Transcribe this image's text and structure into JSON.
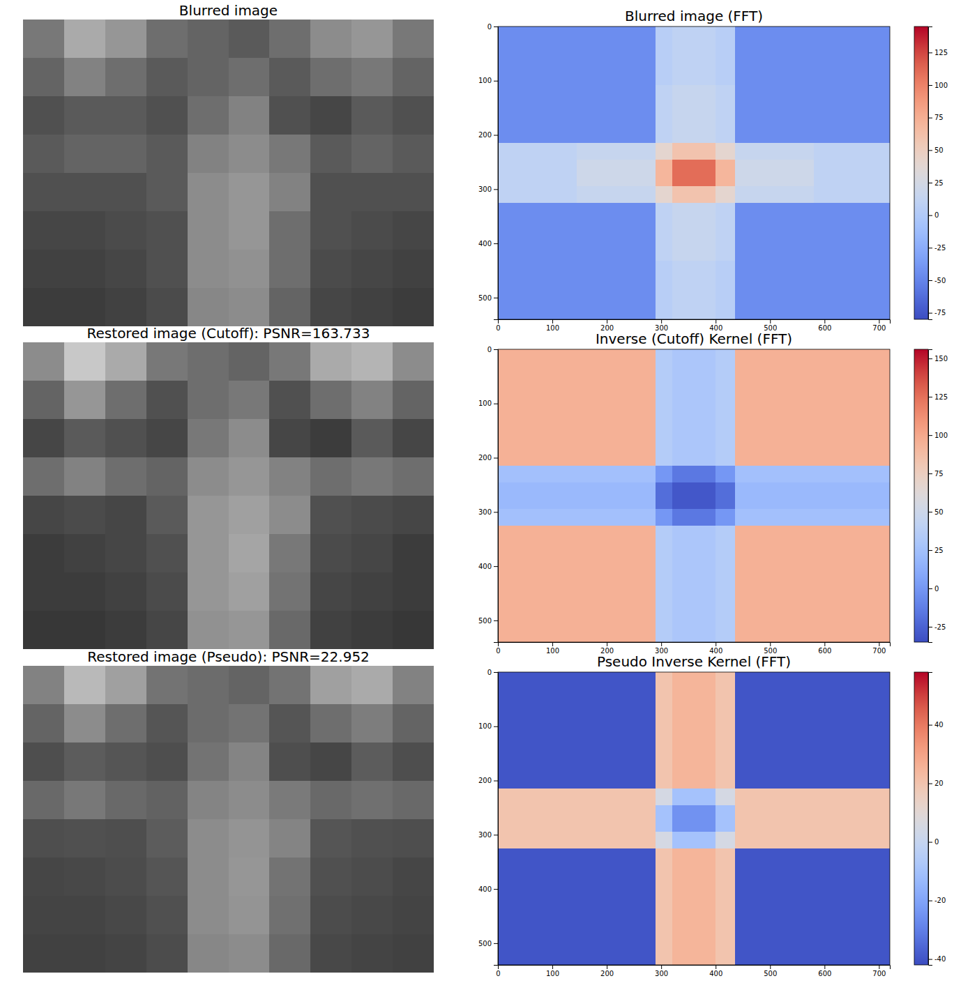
{
  "chart_data": [
    {
      "type": "image",
      "title": "Blurred image",
      "tick_labels": false,
      "color": "gray",
      "clim": [
        0,
        255
      ],
      "cells": [
        [
          120,
          170,
          150,
          110,
          100,
          90,
          110,
          140,
          150,
          120
        ],
        [
          100,
          130,
          110,
          90,
          100,
          110,
          90,
          110,
          120,
          100
        ],
        [
          80,
          90,
          90,
          80,
          110,
          130,
          80,
          70,
          90,
          80
        ],
        [
          90,
          100,
          100,
          90,
          130,
          140,
          120,
          90,
          100,
          90
        ],
        [
          80,
          80,
          80,
          90,
          140,
          150,
          130,
          80,
          80,
          80
        ],
        [
          70,
          70,
          75,
          80,
          140,
          150,
          110,
          80,
          75,
          70
        ],
        [
          65,
          65,
          70,
          80,
          140,
          145,
          110,
          75,
          70,
          65
        ],
        [
          60,
          60,
          65,
          75,
          135,
          140,
          100,
          70,
          65,
          60
        ]
      ]
    },
    {
      "type": "heatmap",
      "title": "Blurred image (FFT)",
      "color": "coolwarm",
      "xlim": [
        0,
        720
      ],
      "ylim": [
        540,
        0
      ],
      "xticks": [
        0,
        100,
        200,
        300,
        400,
        500,
        600,
        700
      ],
      "yticks": [
        0,
        100,
        200,
        300,
        400,
        500
      ],
      "x_edges": [
        0,
        145,
        290,
        320,
        360,
        400,
        435,
        580,
        720
      ],
      "y_edges": [
        0,
        108,
        215,
        245,
        270,
        295,
        325,
        432,
        540
      ],
      "clim": [
        -80,
        145
      ],
      "cticks": [
        -75,
        -50,
        -25,
        0,
        25,
        50,
        75,
        100,
        125
      ],
      "cells": [
        [
          -45,
          -45,
          5,
          10,
          10,
          5,
          -45,
          -45
        ],
        [
          -45,
          -45,
          10,
          15,
          15,
          10,
          -45,
          -45
        ],
        [
          10,
          15,
          40,
          60,
          60,
          40,
          15,
          10
        ],
        [
          10,
          20,
          70,
          110,
          110,
          70,
          20,
          10
        ],
        [
          10,
          20,
          70,
          110,
          110,
          70,
          20,
          10
        ],
        [
          10,
          15,
          40,
          60,
          60,
          40,
          15,
          10
        ],
        [
          -45,
          -45,
          10,
          15,
          15,
          10,
          -45,
          -45
        ],
        [
          -45,
          -45,
          5,
          10,
          10,
          5,
          -45,
          -45
        ]
      ]
    },
    {
      "type": "image",
      "title": "Restored image (Cutoff): PSNR=163.733",
      "tick_labels": false,
      "color": "gray",
      "clim": [
        0,
        255
      ],
      "cells": [
        [
          140,
          200,
          170,
          120,
          110,
          100,
          120,
          170,
          180,
          140
        ],
        [
          100,
          150,
          110,
          80,
          110,
          120,
          80,
          110,
          130,
          100
        ],
        [
          70,
          90,
          80,
          70,
          120,
          140,
          70,
          60,
          90,
          70
        ],
        [
          110,
          130,
          110,
          100,
          140,
          150,
          130,
          110,
          120,
          110
        ],
        [
          70,
          75,
          70,
          90,
          150,
          160,
          140,
          80,
          75,
          70
        ],
        [
          60,
          65,
          70,
          80,
          150,
          165,
          120,
          75,
          70,
          60
        ],
        [
          60,
          60,
          65,
          75,
          150,
          160,
          115,
          70,
          65,
          60
        ],
        [
          55,
          55,
          60,
          70,
          145,
          150,
          105,
          65,
          60,
          55
        ]
      ]
    },
    {
      "type": "heatmap",
      "title": "Inverse (Cutoff) Kernel (FFT)",
      "color": "coolwarm",
      "xlim": [
        0,
        720
      ],
      "ylim": [
        540,
        0
      ],
      "xticks": [
        0,
        100,
        200,
        300,
        400,
        500,
        600,
        700
      ],
      "yticks": [
        0,
        100,
        200,
        300,
        400,
        500
      ],
      "x_edges": [
        0,
        145,
        290,
        320,
        360,
        400,
        435,
        580,
        720
      ],
      "y_edges": [
        0,
        108,
        215,
        245,
        270,
        295,
        325,
        432,
        540
      ],
      "clim": [
        -35,
        156
      ],
      "cticks": [
        -25,
        0,
        25,
        50,
        75,
        100,
        125,
        150
      ],
      "cells": [
        [
          95,
          95,
          35,
          30,
          30,
          35,
          95,
          95
        ],
        [
          95,
          95,
          35,
          30,
          30,
          35,
          95,
          95
        ],
        [
          25,
          25,
          0,
          -15,
          -15,
          0,
          25,
          25
        ],
        [
          20,
          20,
          -20,
          -30,
          -30,
          -20,
          20,
          20
        ],
        [
          20,
          20,
          -20,
          -30,
          -30,
          -20,
          20,
          20
        ],
        [
          25,
          25,
          0,
          -15,
          -15,
          0,
          25,
          25
        ],
        [
          95,
          95,
          35,
          30,
          30,
          35,
          95,
          95
        ],
        [
          95,
          95,
          35,
          30,
          30,
          35,
          95,
          95
        ]
      ]
    },
    {
      "type": "image",
      "title": "Restored image (Pseudo): PSNR=22.952",
      "tick_labels": false,
      "color": "gray",
      "clim": [
        0,
        255
      ],
      "cells": [
        [
          130,
          185,
          160,
          115,
          108,
          100,
          115,
          160,
          170,
          130
        ],
        [
          100,
          140,
          110,
          85,
          108,
          115,
          85,
          110,
          125,
          100
        ],
        [
          78,
          92,
          85,
          78,
          115,
          132,
          78,
          70,
          92,
          78
        ],
        [
          105,
          120,
          105,
          98,
          132,
          140,
          122,
          105,
          112,
          105
        ],
        [
          78,
          80,
          78,
          92,
          140,
          148,
          132,
          85,
          80,
          78
        ],
        [
          70,
          72,
          76,
          85,
          140,
          150,
          115,
          80,
          76,
          70
        ],
        [
          68,
          68,
          72,
          80,
          140,
          148,
          112,
          76,
          72,
          68
        ],
        [
          65,
          65,
          68,
          76,
          135,
          140,
          105,
          72,
          68,
          65
        ]
      ]
    },
    {
      "type": "heatmap",
      "title": "Pseudo Inverse Kernel (FFT)",
      "color": "coolwarm",
      "xlim": [
        0,
        720
      ],
      "ylim": [
        540,
        0
      ],
      "xticks": [
        0,
        100,
        200,
        300,
        400,
        500,
        600,
        700
      ],
      "yticks": [
        0,
        100,
        200,
        300,
        400,
        500
      ],
      "x_edges": [
        0,
        145,
        290,
        320,
        360,
        400,
        435,
        580,
        720
      ],
      "y_edges": [
        0,
        108,
        215,
        245,
        270,
        295,
        325,
        432,
        540
      ],
      "clim": [
        -42,
        58
      ],
      "cticks": [
        -40,
        -20,
        0,
        20,
        40
      ],
      "cells": [
        [
          -40,
          -40,
          20,
          25,
          25,
          20,
          -40,
          -40
        ],
        [
          -40,
          -40,
          20,
          25,
          25,
          20,
          -40,
          -40
        ],
        [
          20,
          20,
          5,
          -10,
          -10,
          5,
          20,
          20
        ],
        [
          20,
          20,
          -10,
          -25,
          -25,
          -10,
          20,
          20
        ],
        [
          20,
          20,
          -10,
          -25,
          -25,
          -10,
          20,
          20
        ],
        [
          20,
          20,
          5,
          -10,
          -10,
          5,
          20,
          20
        ],
        [
          -40,
          -40,
          20,
          25,
          25,
          20,
          -40,
          -40
        ],
        [
          -40,
          -40,
          20,
          25,
          25,
          20,
          -40,
          -40
        ]
      ]
    }
  ]
}
